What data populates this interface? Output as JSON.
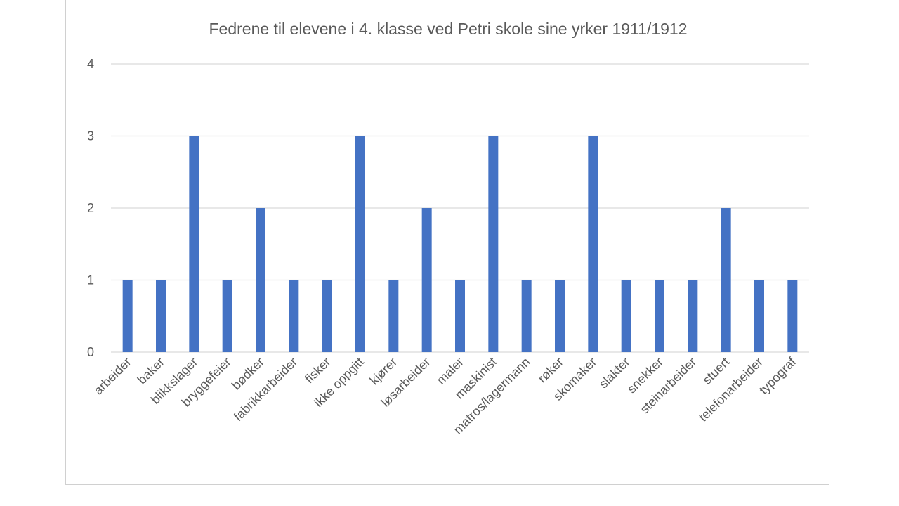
{
  "chart_data": {
    "type": "bar",
    "title": "Fedrene til elevene i 4. klasse ved Petri skole sine yrker 1911/1912",
    "categories": [
      "arbeider",
      "baker",
      "blikkslager",
      "bryggefeier",
      "bødker",
      "fabrikkarbeider",
      "fisker",
      "ikke oppgitt",
      "kjører",
      "løsarbeider",
      "maler",
      "maskinist",
      "matros/lagermann",
      "røker",
      "skomaker",
      "slakter",
      "snekker",
      "steinarbeider",
      "stuert",
      "telefonarbeider",
      "typograf"
    ],
    "values": [
      1,
      1,
      3,
      1,
      2,
      1,
      1,
      3,
      1,
      2,
      1,
      3,
      1,
      1,
      3,
      1,
      1,
      1,
      2,
      1,
      1
    ],
    "ylim": [
      0,
      4
    ],
    "yticks": [
      0,
      1,
      2,
      3,
      4
    ],
    "grid": true,
    "legend": "none",
    "bar_color": "#4472C4"
  }
}
